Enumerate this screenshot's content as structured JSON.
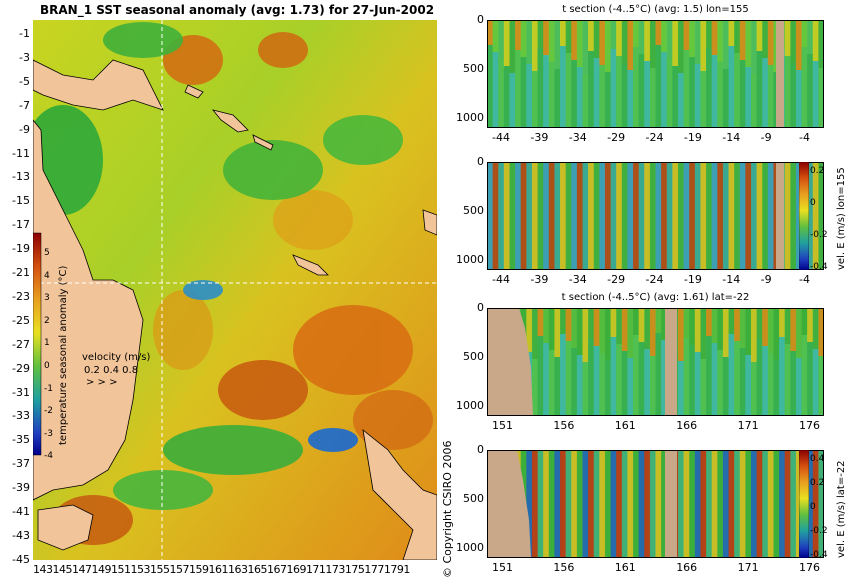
{
  "map": {
    "title": "BRAN_1 SST seasonal anomaly (avg: 1.73) for 27-Jun-2002",
    "lat_labels": [
      "-1",
      "-3",
      "-5",
      "-7",
      "-9",
      "-11",
      "-13",
      "-15",
      "-17",
      "-19",
      "-21",
      "-23",
      "-25",
      "-27",
      "-29",
      "-31",
      "-33",
      "-35",
      "-37",
      "-39",
      "-41",
      "-43",
      "-45"
    ],
    "lon_labels": [
      "143",
      "145",
      "147",
      "149",
      "151",
      "153",
      "155",
      "157",
      "159",
      "161",
      "163",
      "165",
      "167",
      "169",
      "171",
      "173",
      "175",
      "177",
      "179"
    ],
    "lon_text": "1431451471491511531551571591611631651671691711731751771791",
    "colorbar": {
      "label": "temperature seasonal anomaly (°C)",
      "ticks": [
        "5",
        "4",
        "3",
        "2",
        "1",
        "0",
        "-1",
        "-2",
        "-3",
        "-4"
      ],
      "min": -4,
      "max": 5
    },
    "velocity_legend": {
      "title": "velocity (m/s)",
      "values": "0.2 0.4 0.8"
    },
    "crosshair": {
      "lon": 155,
      "lat": -22
    },
    "colors": {
      "ocean_warm": "#e07010",
      "ocean_mid": "#d8d820",
      "ocean_cool": "#30b030",
      "land": "#f2c49a",
      "deep_anomaly": "#00008b"
    }
  },
  "panels": [
    {
      "id": "t-section-lon",
      "title": "t section (-4..5°C) (avg: 1.5) lon=155",
      "x_ticks": [
        "-44",
        "-39",
        "-34",
        "-29",
        "-24",
        "-19",
        "-14",
        "-9",
        "-4"
      ],
      "y_ticks": [
        "0",
        "500",
        "1000"
      ],
      "colorbar": null
    },
    {
      "id": "vel-section-lon",
      "title": "",
      "x_ticks": [
        "-44",
        "-39",
        "-34",
        "-29",
        "-24",
        "-19",
        "-14",
        "-9",
        "-4"
      ],
      "y_ticks": [
        "0",
        "500",
        "1000"
      ],
      "colorbar": {
        "label": "vel. E (m/s) lon=155",
        "ticks": [
          "0.2",
          "0",
          "-0.2",
          "-0.4"
        ]
      }
    },
    {
      "id": "t-section-lat",
      "title": "t section (-4..5°C) (avg: 1.61) lat=-22",
      "x_ticks": [
        "151",
        "156",
        "161",
        "166",
        "171",
        "176"
      ],
      "y_ticks": [
        "0",
        "500",
        "1000"
      ],
      "colorbar": null
    },
    {
      "id": "vel-section-lat",
      "title": "",
      "x_ticks": [
        "151",
        "156",
        "161",
        "166",
        "171",
        "176"
      ],
      "y_ticks": [
        "0",
        "500",
        "1000"
      ],
      "colorbar": {
        "label": "vel. E (m/s) lat=-22",
        "ticks": [
          "0.4",
          "0.2",
          "0",
          "-0.2",
          "-0.4"
        ]
      }
    }
  ],
  "copyright": "© Copyright CSIRO 2006"
}
